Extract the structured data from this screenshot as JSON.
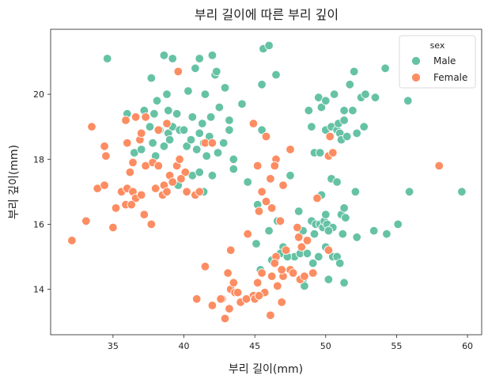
{
  "chart_data": {
    "type": "scatter",
    "title": "부리 길이에 따른 부리 깊이",
    "xlabel": "부리 길이(mm)",
    "ylabel": "부리 깊이(mm)",
    "xlim": [
      30.6,
      61.0
    ],
    "ylim": [
      12.6,
      22.0
    ],
    "xticks": [
      35,
      40,
      45,
      50,
      55,
      60
    ],
    "yticks": [
      14,
      16,
      18,
      20
    ],
    "grid": false,
    "legend": {
      "title": "sex",
      "placement": "top-right"
    },
    "series": [
      {
        "name": "Male",
        "color": "#66c2a5",
        "points": [
          [
            34.6,
            21.1
          ],
          [
            38.6,
            21.2
          ],
          [
            39.2,
            21.1
          ],
          [
            41.1,
            21.1
          ],
          [
            42.0,
            21.2
          ],
          [
            45.6,
            21.4
          ],
          [
            46.0,
            21.5
          ],
          [
            37.7,
            20.5
          ],
          [
            38.8,
            20.0
          ],
          [
            39.6,
            20.7
          ],
          [
            40.3,
            20.1
          ],
          [
            40.8,
            20.8
          ],
          [
            41.5,
            20.0
          ],
          [
            42.2,
            20.6
          ],
          [
            42.3,
            20.7
          ],
          [
            42.9,
            20.2
          ],
          [
            45.5,
            20.3
          ],
          [
            46.5,
            20.6
          ],
          [
            36.0,
            19.4
          ],
          [
            37.2,
            19.5
          ],
          [
            37.9,
            19.4
          ],
          [
            38.1,
            19.8
          ],
          [
            38.9,
            19.5
          ],
          [
            39.5,
            19.4
          ],
          [
            40.6,
            19.3
          ],
          [
            41.3,
            19.1
          ],
          [
            41.9,
            19.3
          ],
          [
            42.5,
            19.6
          ],
          [
            43.2,
            19.2
          ],
          [
            44.1,
            19.7
          ],
          [
            36.5,
            18.2
          ],
          [
            37.0,
            18.3
          ],
          [
            37.6,
            19.0
          ],
          [
            37.8,
            18.5
          ],
          [
            38.0,
            18.1
          ],
          [
            38.3,
            18.9
          ],
          [
            38.6,
            18.4
          ],
          [
            38.9,
            18.8
          ],
          [
            39.0,
            18.6
          ],
          [
            39.2,
            19.0
          ],
          [
            39.7,
            18.9
          ],
          [
            40.0,
            18.9
          ],
          [
            40.2,
            18.4
          ],
          [
            40.5,
            18.6
          ],
          [
            40.9,
            18.3
          ],
          [
            41.1,
            18.8
          ],
          [
            41.4,
            18.5
          ],
          [
            41.6,
            18.1
          ],
          [
            41.8,
            18.7
          ],
          [
            42.4,
            18.2
          ],
          [
            42.8,
            18.5
          ],
          [
            43.2,
            18.9
          ],
          [
            43.5,
            18.0
          ],
          [
            39.6,
            17.2
          ],
          [
            40.6,
            17.5
          ],
          [
            41.1,
            17.6
          ],
          [
            41.4,
            17.0
          ],
          [
            42.0,
            17.5
          ],
          [
            43.5,
            17.7
          ],
          [
            44.5,
            17.3
          ],
          [
            48.8,
            19.5
          ],
          [
            49.5,
            19.9
          ],
          [
            49.7,
            19.6
          ],
          [
            50.0,
            19.8
          ],
          [
            50.6,
            20.0
          ],
          [
            51.3,
            19.5
          ],
          [
            51.7,
            20.3
          ],
          [
            52.0,
            20.7
          ],
          [
            52.5,
            19.9
          ],
          [
            52.8,
            20.0
          ],
          [
            53.5,
            19.9
          ],
          [
            54.2,
            20.8
          ],
          [
            55.8,
            19.8
          ],
          [
            45.5,
            18.9
          ],
          [
            49.0,
            19.0
          ],
          [
            49.2,
            18.2
          ],
          [
            49.6,
            18.2
          ],
          [
            50.0,
            18.9
          ],
          [
            50.4,
            19.0
          ],
          [
            50.8,
            18.9
          ],
          [
            50.9,
            19.1
          ],
          [
            51.0,
            18.8
          ],
          [
            51.1,
            18.6
          ],
          [
            51.3,
            19.2
          ],
          [
            51.5,
            18.7
          ],
          [
            51.9,
            19.5
          ],
          [
            52.2,
            18.8
          ],
          [
            52.7,
            19.0
          ],
          [
            47.5,
            17.5
          ],
          [
            50.4,
            17.4
          ],
          [
            50.8,
            17.3
          ],
          [
            52.1,
            17.0
          ],
          [
            55.9,
            17.0
          ],
          [
            59.6,
            17.0
          ],
          [
            49.7,
            16.9
          ],
          [
            45.2,
            16.6
          ],
          [
            46.6,
            16.1
          ],
          [
            48.1,
            16.4
          ],
          [
            49.0,
            16.1
          ],
          [
            49.3,
            16.0
          ],
          [
            49.6,
            16.0
          ],
          [
            49.8,
            15.9
          ],
          [
            49.9,
            16.1
          ],
          [
            50.0,
            16.3
          ],
          [
            50.1,
            16.0
          ],
          [
            50.5,
            15.9
          ],
          [
            51.1,
            16.3
          ],
          [
            51.3,
            16.5
          ],
          [
            51.4,
            16.2
          ],
          [
            48.4,
            15.8
          ],
          [
            49.2,
            15.7
          ],
          [
            50.2,
            15.8
          ],
          [
            51.2,
            15.7
          ],
          [
            52.2,
            15.6
          ],
          [
            53.4,
            15.8
          ],
          [
            54.3,
            15.7
          ],
          [
            55.1,
            16.0
          ],
          [
            45.1,
            15.4
          ],
          [
            46.0,
            15.8
          ],
          [
            47.0,
            15.3
          ],
          [
            47.8,
            15.0
          ],
          [
            48.2,
            15.1
          ],
          [
            48.7,
            15.1
          ],
          [
            49.1,
            14.8
          ],
          [
            49.5,
            15.0
          ],
          [
            50.0,
            15.3
          ],
          [
            50.2,
            15.2
          ],
          [
            50.5,
            15.0
          ],
          [
            50.8,
            15.0
          ],
          [
            51.0,
            14.8
          ],
          [
            45.4,
            14.6
          ],
          [
            46.2,
            14.9
          ],
          [
            46.8,
            15.1
          ],
          [
            47.3,
            15.0
          ],
          [
            48.4,
            14.3
          ],
          [
            48.5,
            14.1
          ],
          [
            50.2,
            14.3
          ],
          [
            51.3,
            14.2
          ]
        ]
      },
      {
        "name": "Female",
        "color": "#fc8d62",
        "points": [
          [
            39.6,
            20.7
          ],
          [
            35.9,
            19.2
          ],
          [
            36.6,
            19.3
          ],
          [
            37.3,
            19.3
          ],
          [
            38.2,
            18.9
          ],
          [
            38.8,
            19.1
          ],
          [
            41.5,
            18.5
          ],
          [
            42.0,
            18.5
          ],
          [
            33.5,
            19.0
          ],
          [
            34.5,
            18.1
          ],
          [
            36.0,
            18.5
          ],
          [
            36.4,
            17.9
          ],
          [
            36.9,
            18.6
          ],
          [
            37.0,
            18.8
          ],
          [
            37.3,
            17.8
          ],
          [
            37.8,
            17.9
          ],
          [
            38.2,
            17.8
          ],
          [
            38.6,
            17.2
          ],
          [
            39.0,
            17.5
          ],
          [
            39.5,
            17.8
          ],
          [
            39.7,
            18.0
          ],
          [
            40.1,
            17.6
          ],
          [
            36.2,
            17.6
          ],
          [
            34.4,
            18.4
          ],
          [
            33.1,
            16.1
          ],
          [
            33.9,
            17.1
          ],
          [
            34.4,
            17.2
          ],
          [
            35.2,
            16.5
          ],
          [
            35.6,
            17.0
          ],
          [
            35.9,
            16.6
          ],
          [
            36.0,
            17.1
          ],
          [
            36.4,
            17.0
          ],
          [
            36.6,
            16.8
          ],
          [
            37.0,
            16.9
          ],
          [
            37.2,
            16.3
          ],
          [
            37.7,
            16.0
          ],
          [
            38.0,
            17.1
          ],
          [
            38.5,
            16.9
          ],
          [
            38.8,
            17.0
          ],
          [
            39.2,
            17.3
          ],
          [
            39.8,
            17.4
          ],
          [
            40.2,
            17.0
          ],
          [
            40.8,
            16.9
          ],
          [
            41.1,
            17.0
          ],
          [
            35.0,
            15.9
          ],
          [
            36.3,
            16.6
          ],
          [
            32.1,
            15.5
          ],
          [
            44.9,
            19.1
          ],
          [
            45.8,
            18.7
          ],
          [
            46.5,
            18.0
          ],
          [
            47.5,
            18.3
          ],
          [
            45.2,
            17.8
          ],
          [
            46.1,
            17.4
          ],
          [
            45.5,
            17.0
          ],
          [
            46.4,
            17.8
          ],
          [
            47.0,
            17.2
          ],
          [
            45.8,
            16.7
          ],
          [
            45.3,
            16.4
          ],
          [
            44.5,
            15.7
          ],
          [
            46.2,
            16.5
          ],
          [
            46.8,
            16.1
          ],
          [
            50.3,
            18.7
          ],
          [
            50.2,
            18.1
          ],
          [
            50.5,
            18.2
          ],
          [
            58.0,
            17.8
          ],
          [
            49.4,
            16.8
          ],
          [
            48.0,
            15.9
          ],
          [
            48.1,
            15.6
          ],
          [
            48.3,
            15.3
          ],
          [
            48.7,
            15.5
          ],
          [
            46.5,
            15.0
          ],
          [
            47.0,
            14.4
          ],
          [
            47.2,
            15.2
          ],
          [
            47.5,
            14.6
          ],
          [
            47.7,
            14.5
          ],
          [
            45.5,
            14.5
          ],
          [
            45.7,
            13.9
          ],
          [
            46.2,
            14.4
          ],
          [
            46.4,
            14.8
          ],
          [
            46.9,
            14.6
          ],
          [
            45.2,
            14.2
          ],
          [
            44.9,
            13.8
          ],
          [
            45.0,
            13.7
          ],
          [
            45.3,
            13.8
          ],
          [
            46.1,
            13.2
          ],
          [
            46.6,
            14.1
          ],
          [
            46.9,
            13.6
          ],
          [
            48.2,
            14.3
          ],
          [
            48.5,
            14.4
          ],
          [
            50.2,
            15.2
          ],
          [
            49.1,
            14.5
          ],
          [
            41.5,
            14.7
          ],
          [
            42.7,
            13.7
          ],
          [
            42.9,
            13.1
          ],
          [
            43.2,
            13.4
          ],
          [
            43.3,
            14.0
          ],
          [
            43.5,
            14.2
          ],
          [
            43.6,
            13.9
          ],
          [
            43.8,
            13.9
          ],
          [
            44.0,
            13.6
          ],
          [
            44.4,
            13.7
          ],
          [
            40.9,
            13.7
          ],
          [
            42.0,
            13.5
          ],
          [
            43.1,
            14.5
          ],
          [
            43.3,
            15.2
          ],
          [
            42.6,
            13.7
          ]
        ]
      }
    ]
  }
}
